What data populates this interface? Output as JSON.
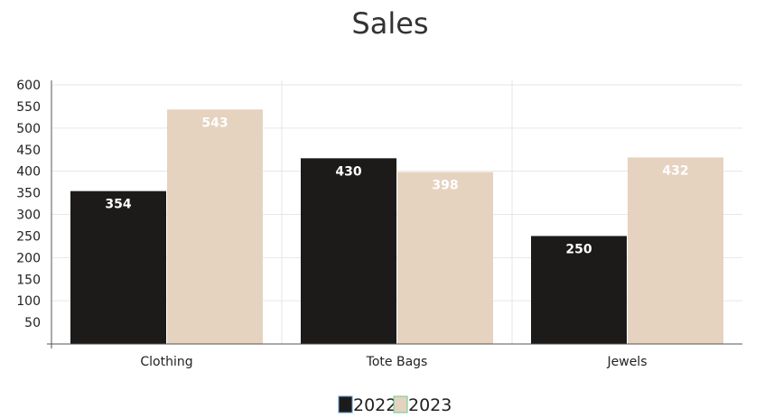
{
  "chart_data": {
    "type": "bar",
    "title": "Sales",
    "categories": [
      "Clothing",
      "Tote Bags",
      "Jewels"
    ],
    "series": [
      {
        "name": "2022",
        "values": [
          354,
          430,
          250
        ],
        "color": "#1d1b1a",
        "legend_border": "#5b9bd5"
      },
      {
        "name": "2023",
        "values": [
          543,
          398,
          432
        ],
        "color": "#e5d3c0",
        "legend_border": "#5fcf8f"
      }
    ],
    "yticks": [
      50,
      100,
      150,
      200,
      250,
      300,
      350,
      400,
      450,
      500,
      550,
      600
    ],
    "ylim": [
      0,
      600
    ],
    "grid": true,
    "legend_position": "bottom-center",
    "data_label_color": "#ffffff",
    "axis_color": "#555555",
    "grid_color": "#e6e6e6"
  }
}
